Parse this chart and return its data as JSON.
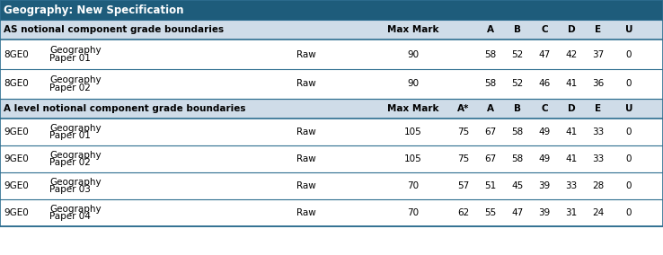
{
  "title": "Geography: New Specification",
  "title_bg": "#1e5c7b",
  "title_fg": "#ffffff",
  "border_color": "#2e6e90",
  "light_blue_bg": "#cfdce8",
  "white_bg": "#ffffff",
  "as_section_label": "AS notional component grade boundaries",
  "al_section_label": "A level notional component grade boundaries",
  "as_grade_headers": [
    "A",
    "B",
    "C",
    "D",
    "E",
    "U"
  ],
  "al_grade_headers": [
    "A*",
    "A",
    "B",
    "C",
    "D",
    "E",
    "U"
  ],
  "as_rows": [
    {
      "code": "8GE0",
      "name": "Geography",
      "paper": "Paper 01",
      "type": "Raw",
      "max": "90",
      "grades": [
        "58",
        "52",
        "47",
        "42",
        "37",
        "0"
      ]
    },
    {
      "code": "8GE0",
      "name": "Geography",
      "paper": "Paper 02",
      "type": "Raw",
      "max": "90",
      "grades": [
        "58",
        "52",
        "46",
        "41",
        "36",
        "0"
      ]
    }
  ],
  "al_rows": [
    {
      "code": "9GE0",
      "name": "Geography",
      "paper": "Paper 01",
      "type": "Raw",
      "max": "105",
      "astar": "75",
      "grades": [
        "67",
        "58",
        "49",
        "41",
        "33",
        "0"
      ]
    },
    {
      "code": "9GE0",
      "name": "Geography",
      "paper": "Paper 02",
      "type": "Raw",
      "max": "105",
      "astar": "75",
      "grades": [
        "67",
        "58",
        "49",
        "41",
        "33",
        "0"
      ]
    },
    {
      "code": "9GE0",
      "name": "Geography",
      "paper": "Paper 03",
      "type": "Raw",
      "max": "70",
      "astar": "57",
      "grades": [
        "51",
        "45",
        "39",
        "33",
        "28",
        "0"
      ]
    },
    {
      "code": "9GE0",
      "name": "Geography",
      "paper": "Paper 04",
      "type": "Raw",
      "max": "70",
      "astar": "62",
      "grades": [
        "55",
        "47",
        "39",
        "31",
        "24",
        "0"
      ]
    }
  ],
  "figsize": [
    7.38,
    2.84
  ],
  "dpi": 100
}
